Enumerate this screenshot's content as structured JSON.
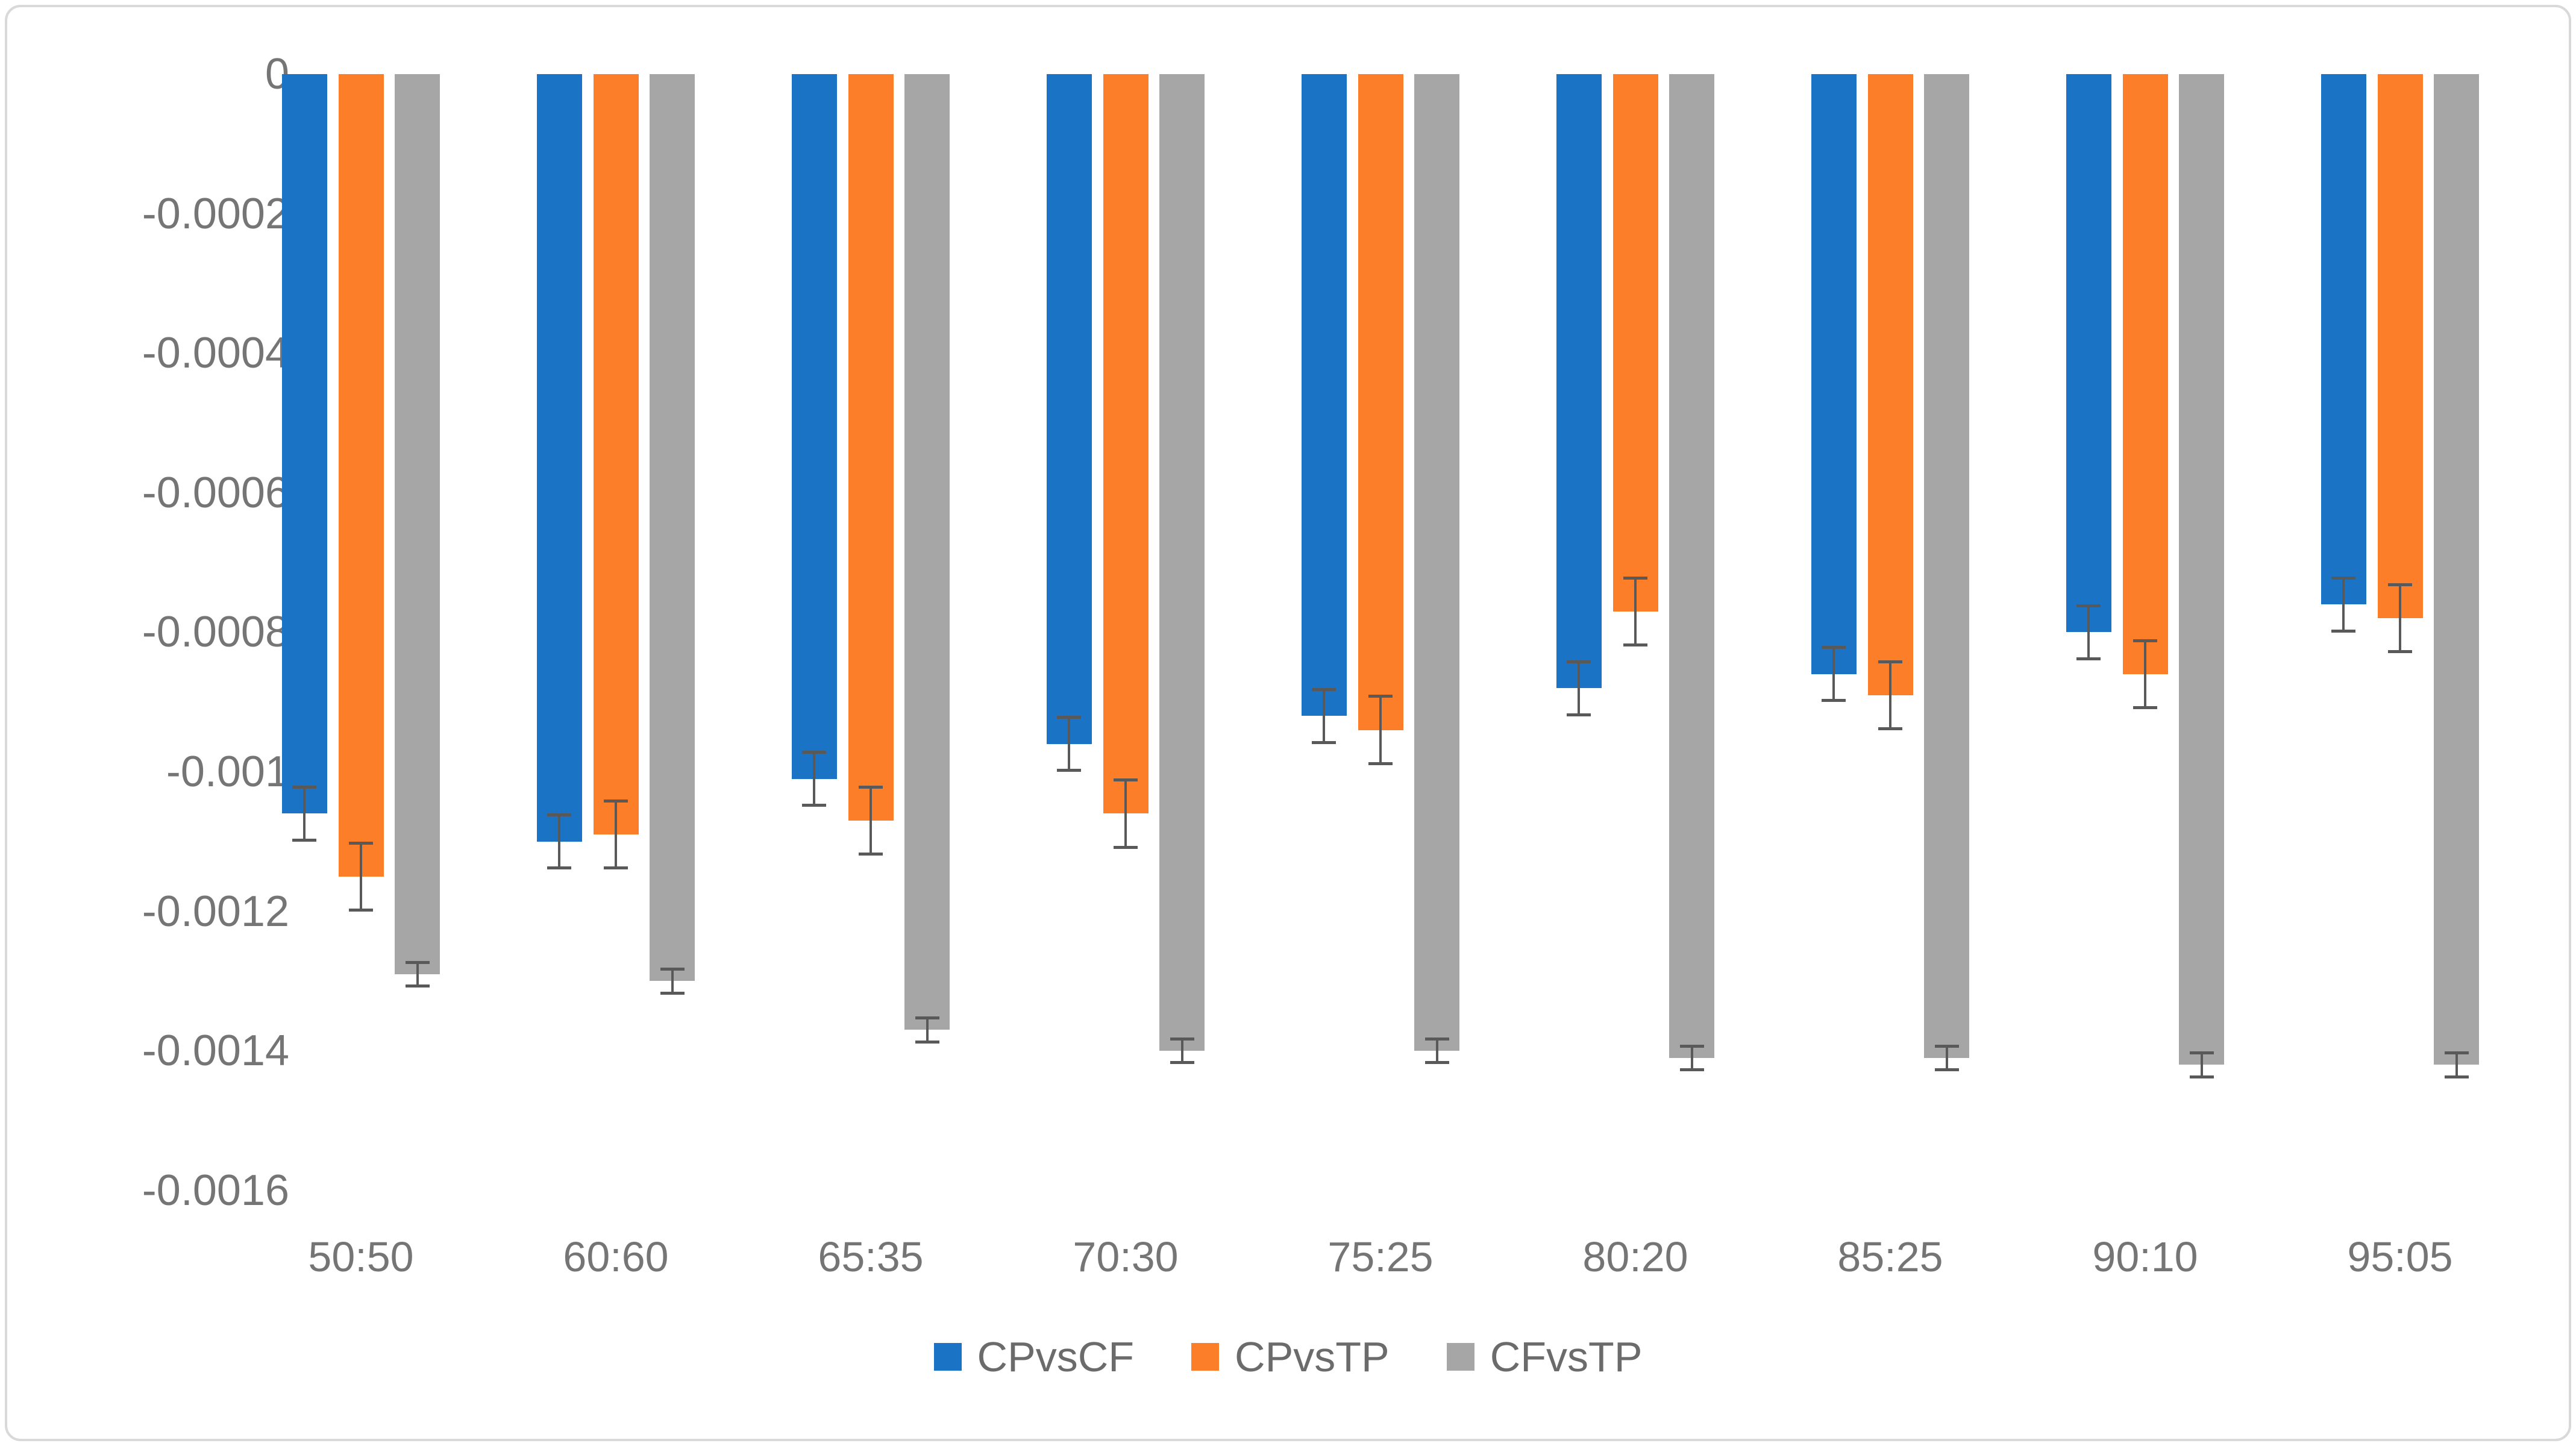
{
  "chart_data": {
    "type": "bar",
    "title": "",
    "xlabel": "",
    "ylabel": "",
    "categories": [
      "50:50",
      "60:60",
      "65:35",
      "70:30",
      "75:25",
      "80:20",
      "85:25",
      "90:10",
      "95:05"
    ],
    "series": [
      {
        "name": "CPvsCF",
        "color": "#1A73C5",
        "values": [
          -0.00106,
          -0.0011,
          -0.00101,
          -0.00096,
          -0.00092,
          -0.00088,
          -0.00086,
          -0.0008,
          -0.00076
        ],
        "error": [
          3.8e-05,
          3.8e-05,
          3.8e-05,
          3.8e-05,
          3.8e-05,
          3.8e-05,
          3.8e-05,
          3.8e-05,
          3.8e-05
        ]
      },
      {
        "name": "CPvsTP",
        "color": "#FC7E28",
        "values": [
          -0.00115,
          -0.00109,
          -0.00107,
          -0.00106,
          -0.00094,
          -0.00077,
          -0.00089,
          -0.00086,
          -0.00078
        ],
        "error": [
          4.8e-05,
          4.8e-05,
          4.8e-05,
          4.8e-05,
          4.8e-05,
          4.8e-05,
          4.8e-05,
          4.8e-05,
          4.8e-05
        ]
      },
      {
        "name": "CFvsTP",
        "color": "#A6A6A6",
        "values": [
          -0.00129,
          -0.0013,
          -0.00137,
          -0.0014,
          -0.0014,
          -0.00141,
          -0.00141,
          -0.00142,
          -0.00142
        ],
        "error": [
          1.7e-05,
          1.7e-05,
          1.7e-05,
          1.7e-05,
          1.7e-05,
          1.7e-05,
          1.7e-05,
          1.7e-05,
          1.7e-05
        ]
      }
    ],
    "yticks": [
      {
        "label": "0",
        "value": 0
      },
      {
        "label": "-0.0002",
        "value": -0.0002
      },
      {
        "label": "-0.0004",
        "value": -0.0004
      },
      {
        "label": "-0.0006",
        "value": -0.0006
      },
      {
        "label": "-0.0008",
        "value": -0.0008
      },
      {
        "label": "-0.001",
        "value": -0.001
      },
      {
        "label": "-0.0012",
        "value": -0.0012
      },
      {
        "label": "-0.0014",
        "value": -0.0014
      },
      {
        "label": "-0.0016",
        "value": -0.0016
      }
    ],
    "ylim": [
      -0.0016,
      0
    ],
    "grid": false,
    "legend_position": "bottom",
    "error_bar_color": "#595959",
    "tick_label_color": "#757575",
    "frame_border_color": "#D9D9D9"
  }
}
